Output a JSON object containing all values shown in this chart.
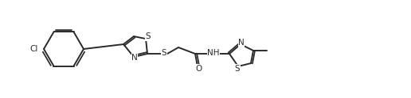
{
  "bg_color": "#ffffff",
  "line_color": "#2a2a2a",
  "line_width": 1.4,
  "font_size": 7.5,
  "figsize": [
    5.16,
    1.24
  ],
  "dpi": 100,
  "xlim": [
    0,
    516
  ],
  "ylim": [
    0,
    124
  ]
}
